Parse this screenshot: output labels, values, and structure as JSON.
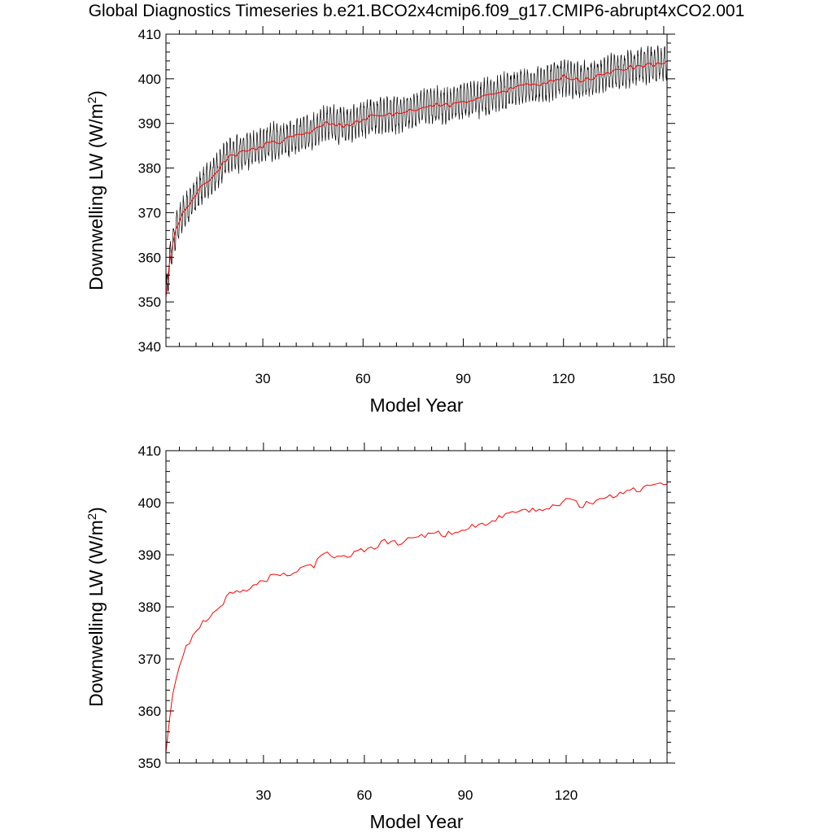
{
  "title": "Global Diagnostics Timeseries b.e21.BCO2x4cmip6.f09_g17.CMIP6-abrupt4xCO2.001",
  "colors": {
    "monthly": "#000000",
    "annual": "#ff0000"
  },
  "chart_data": [
    {
      "type": "line",
      "xlabel": "Model Year",
      "ylabel_main": "Downwelling LW (W/m",
      "ylabel_sup": "2",
      "ylabel_close": ")",
      "xlim": [
        1,
        151
      ],
      "ylim": [
        340,
        410
      ],
      "xticks": [
        30,
        60,
        90,
        120,
        150
      ],
      "yticks": [
        340,
        350,
        360,
        370,
        380,
        390,
        400,
        410
      ],
      "series": [
        {
          "style": "monthly",
          "amplitude": 3.5
        },
        {
          "style": "annual"
        }
      ],
      "annual": {
        "x": [
          1,
          2,
          3,
          4,
          5,
          6,
          8,
          10,
          12,
          15,
          18,
          20,
          22,
          25,
          28,
          30,
          33,
          36,
          40,
          45,
          48,
          50,
          55,
          60,
          63,
          66,
          70,
          75,
          80,
          85,
          90,
          95,
          100,
          105,
          110,
          115,
          120,
          125,
          130,
          135,
          140,
          145,
          150
        ],
        "y": [
          351,
          358,
          363,
          366,
          368,
          370,
          372,
          374,
          376,
          378,
          381,
          383,
          383,
          384,
          384,
          385,
          386,
          386,
          387,
          388,
          390,
          390,
          389.5,
          391,
          391.5,
          392,
          392,
          393,
          394,
          394,
          395,
          395.5,
          396.5,
          398,
          398.5,
          399,
          400.5,
          399.5,
          400.5,
          401.5,
          402.5,
          403,
          403.5
        ]
      }
    },
    {
      "type": "line",
      "xlabel": "Model Year",
      "ylabel_main": "Downwelling LW (W/m",
      "ylabel_sup": "2",
      "ylabel_close": ")",
      "xlim": [
        1,
        150
      ],
      "ylim": [
        350,
        410
      ],
      "xticks": [
        30,
        60,
        90,
        120
      ],
      "yticks": [
        350,
        360,
        370,
        380,
        390,
        400,
        410
      ],
      "series": [
        {
          "style": "annual"
        }
      ],
      "annual": {
        "x": [
          1,
          2,
          3,
          4,
          5,
          6,
          8,
          10,
          12,
          15,
          18,
          20,
          22,
          25,
          28,
          30,
          33,
          36,
          40,
          45,
          48,
          50,
          55,
          60,
          63,
          66,
          70,
          75,
          80,
          85,
          90,
          95,
          100,
          105,
          110,
          115,
          120,
          125,
          130,
          135,
          140,
          145,
          150
        ],
        "y": [
          352,
          358,
          363,
          366,
          369,
          371,
          373,
          375,
          377,
          379,
          381,
          383,
          383,
          383.5,
          384,
          385,
          386,
          386,
          387,
          388,
          390,
          390,
          389.5,
          391,
          391.5,
          392.5,
          392,
          393.5,
          394,
          394,
          395,
          396,
          397,
          398,
          398.5,
          399,
          400.5,
          399.5,
          400.5,
          401.5,
          402.5,
          403,
          404
        ]
      }
    }
  ]
}
